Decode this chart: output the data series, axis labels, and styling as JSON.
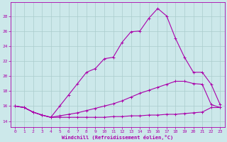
{
  "xlabel": "Windchill (Refroidissement éolien,°C)",
  "background_color": "#cce8ea",
  "grid_color": "#aacccc",
  "line_color": "#aa00aa",
  "x_ticks": [
    0,
    1,
    2,
    3,
    4,
    5,
    6,
    7,
    8,
    9,
    10,
    11,
    12,
    13,
    14,
    15,
    16,
    17,
    18,
    19,
    20,
    21,
    22,
    23
  ],
  "y_ticks": [
    14,
    16,
    18,
    20,
    22,
    24,
    26,
    28
  ],
  "xlim": [
    -0.5,
    23.5
  ],
  "ylim": [
    13.2,
    29.8
  ],
  "line1_x": [
    0,
    1,
    2,
    3,
    4,
    5,
    6,
    7,
    8,
    9,
    10,
    11,
    12,
    13,
    14,
    15,
    16,
    17,
    18,
    19,
    20,
    21,
    22,
    23
  ],
  "line1_y": [
    16.0,
    15.8,
    15.2,
    14.8,
    14.5,
    16.0,
    17.5,
    19.0,
    20.5,
    21.0,
    22.3,
    22.5,
    24.5,
    25.9,
    26.0,
    27.7,
    29.0,
    28.0,
    25.0,
    22.5,
    20.5,
    20.5,
    18.9,
    16.2
  ],
  "line2_x": [
    0,
    1,
    2,
    3,
    4,
    5,
    6,
    7,
    8,
    9,
    10,
    11,
    12,
    13,
    14,
    15,
    16,
    17,
    18,
    19,
    20,
    21,
    22,
    23
  ],
  "line2_y": [
    16.0,
    15.8,
    15.2,
    14.8,
    14.5,
    14.7,
    14.9,
    15.1,
    15.4,
    15.7,
    16.0,
    16.3,
    16.7,
    17.2,
    17.7,
    18.1,
    18.5,
    18.9,
    19.3,
    19.3,
    19.0,
    18.9,
    16.2,
    15.8
  ],
  "line3_x": [
    0,
    1,
    2,
    3,
    4,
    5,
    6,
    7,
    8,
    9,
    10,
    11,
    12,
    13,
    14,
    15,
    16,
    17,
    18,
    19,
    20,
    21,
    22,
    23
  ],
  "line3_y": [
    16.0,
    15.8,
    15.2,
    14.8,
    14.5,
    14.5,
    14.5,
    14.5,
    14.5,
    14.5,
    14.5,
    14.6,
    14.6,
    14.7,
    14.7,
    14.8,
    14.8,
    14.9,
    14.9,
    15.0,
    15.1,
    15.2,
    15.8,
    15.8
  ]
}
